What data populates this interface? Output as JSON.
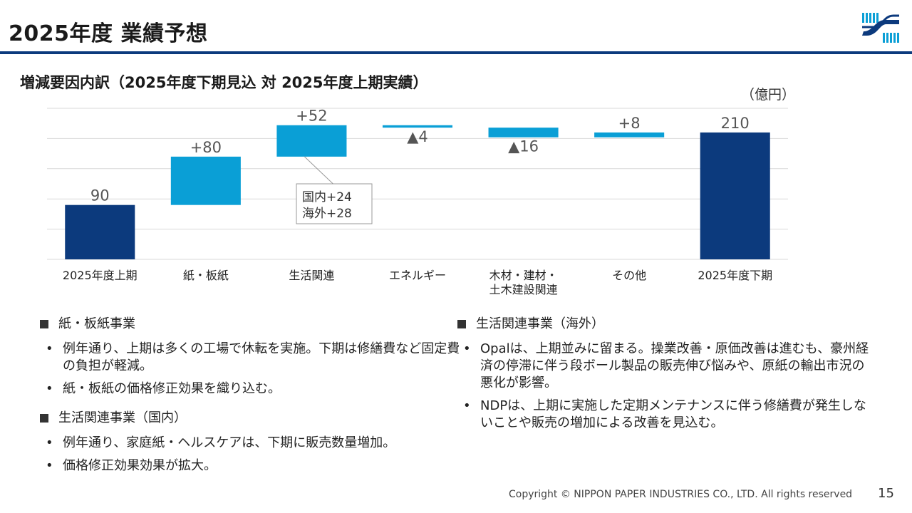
{
  "header": {
    "title": "2025年度 業績予想",
    "subtitle": "増減要因内訳（2025年度下期見込 対 2025年度上期実績）",
    "unit": "（億円）"
  },
  "colors": {
    "total": "#0c3a7d",
    "delta": "#0a9fd6",
    "grid": "#d9d9d9",
    "label": "#555555"
  },
  "chart_data": {
    "type": "bar",
    "subtype": "waterfall",
    "title": "増減要因内訳（2025年度下期見込 対 2025年度上期実績）",
    "ylabel": "（億円）",
    "ylim": [
      0,
      250
    ],
    "grid": true,
    "categories": [
      "2025年度上期",
      "紙・板紙",
      "生活関連",
      "エネルギー",
      "木材・建材・\n土木建設関連",
      "その他",
      "2025年度下期"
    ],
    "values": [
      90,
      80,
      52,
      -4,
      -16,
      8,
      210
    ],
    "kinds": [
      "total",
      "delta",
      "delta",
      "delta",
      "delta",
      "delta",
      "total"
    ],
    "data_labels": [
      "90",
      "+80",
      "+52",
      "▲4",
      "▲16",
      "+8",
      "210"
    ],
    "annotation": {
      "category_index": 2,
      "lines": [
        "国内+24",
        "海外+28"
      ]
    }
  },
  "sections_left": [
    {
      "heading": "紙・板紙事業",
      "bullets": [
        "例年通り、上期は多くの工場で休転を実施。下期は修繕費など固定費の負担が軽減。",
        "紙・板紙の価格修正効果を織り込む。"
      ]
    },
    {
      "heading": "生活関連事業（国内）",
      "bullets": [
        "例年通り、家庭紙・ヘルスケアは、下期に販売数量増加。",
        "価格修正効果効果が拡大。"
      ]
    }
  ],
  "sections_right": [
    {
      "heading": "生活関連事業（海外）",
      "bullets": [
        "Opalは、上期並みに留まる。操業改善・原価改善は進むも、豪州経済の停滞に伴う段ボール製品の販売伸び悩みや、原紙の輸出市況の悪化が影響。",
        "NDPは、上期に実施した定期メンテナンスに伴う修繕費が発生しないことや販売の増加による改善を見込む。"
      ]
    }
  ],
  "footer": {
    "copyright": "Copyright © NIPPON PAPER INDUSTRIES CO., LTD. All rights reserved",
    "page_number": "15"
  }
}
